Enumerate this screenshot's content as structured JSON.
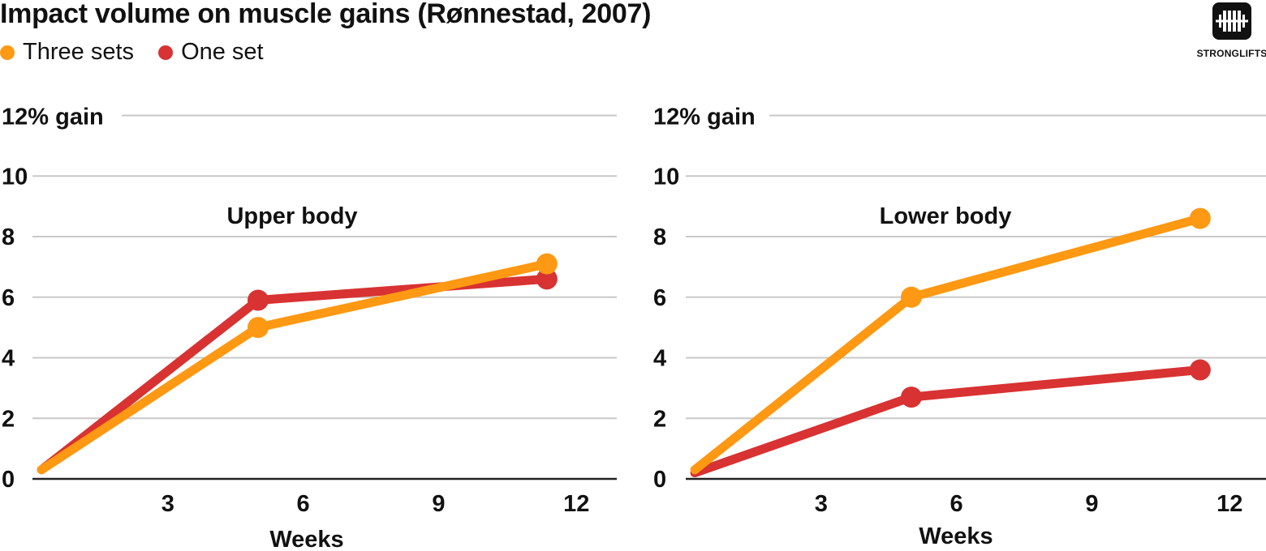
{
  "title": "Impact volume on muscle gains (Rønnestad, 2007)",
  "legend": [
    {
      "label": "Three sets",
      "color": "#FF9812"
    },
    {
      "label": "One set",
      "color": "#D83232"
    }
  ],
  "logo": {
    "icon": "barbell-icon",
    "text": "STRONGLIFTS"
  },
  "chart_data": [
    {
      "type": "line",
      "panel_label": "Upper body",
      "xlabel": "Weeks",
      "top_ytick_label": "12% gain",
      "xticks": [
        3,
        6,
        9,
        12
      ],
      "yticks": [
        0,
        2,
        4,
        6,
        8,
        10,
        12
      ],
      "xlim": [
        0,
        13
      ],
      "ylim": [
        0,
        12
      ],
      "grid": true,
      "series": [
        {
          "name": "Three sets",
          "color": "#FF9812",
          "x": [
            0.2,
            5,
            11.4
          ],
          "y": [
            0.3,
            5.0,
            7.1
          ]
        },
        {
          "name": "One set",
          "color": "#D83232",
          "x": [
            0.2,
            5,
            11.4
          ],
          "y": [
            0.3,
            5.9,
            6.6
          ]
        }
      ]
    },
    {
      "type": "line",
      "panel_label": "Lower body",
      "xlabel": "Weeks",
      "top_ytick_label": "12% gain",
      "xticks": [
        3,
        6,
        9,
        12
      ],
      "yticks": [
        0,
        2,
        4,
        6,
        8,
        10,
        12
      ],
      "xlim": [
        0,
        13
      ],
      "ylim": [
        0,
        12
      ],
      "grid": true,
      "series": [
        {
          "name": "Three sets",
          "color": "#FF9812",
          "x": [
            0.2,
            5,
            11.4
          ],
          "y": [
            0.3,
            6.0,
            8.6
          ]
        },
        {
          "name": "One set",
          "color": "#D83232",
          "x": [
            0.2,
            5,
            11.4
          ],
          "y": [
            0.2,
            2.7,
            3.6
          ]
        }
      ]
    }
  ]
}
